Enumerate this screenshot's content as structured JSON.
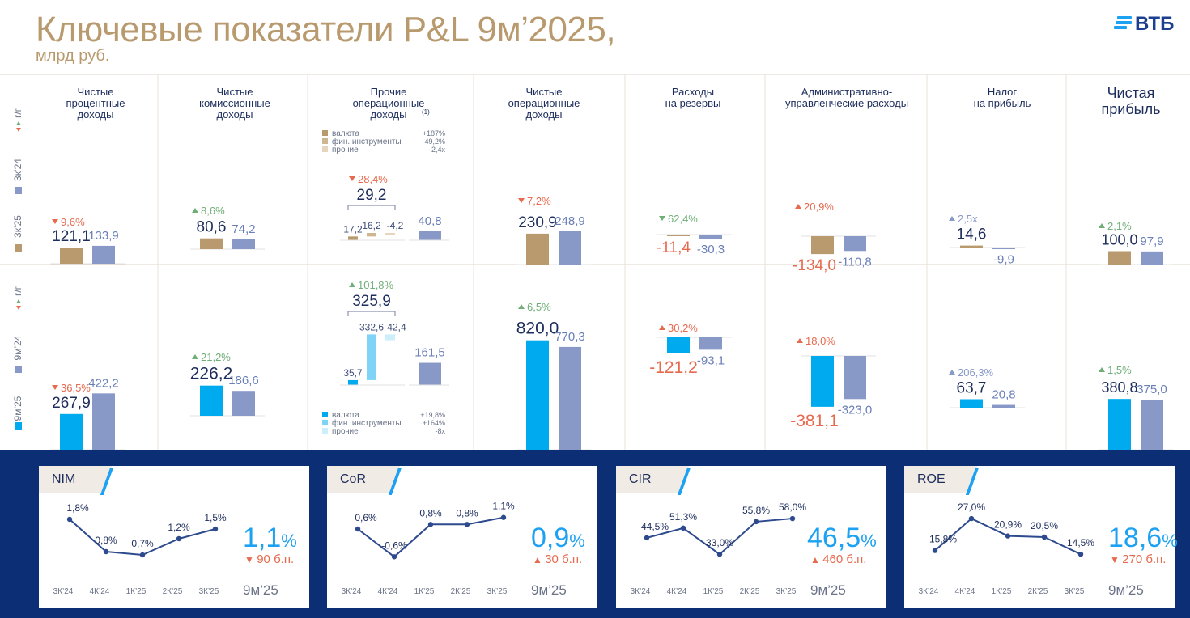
{
  "header": {
    "title": "Ключевые показатели P&L 9м’2025,",
    "subtitle": "млрд руб.",
    "logo_text": "ВТБ"
  },
  "row_labels": {
    "yoy": "г/г",
    "q24": "3к’24",
    "q25": "3к’25",
    "m24": "9м’24",
    "m25": "9м’25"
  },
  "colors": {
    "gold": "#b89a6e",
    "blue": "#00aaee",
    "gray": "#8899c8",
    "red": "#e66a4e",
    "green": "#6fae76",
    "navy": "#1d2d5c",
    "lightblue": "#7fd3f7",
    "paleblue": "#cdeefb",
    "tan": "#cfb692",
    "beige": "#e6d5bc"
  },
  "chart_data": [
    {
      "type": "bar",
      "title": "3к’25 vs 3к’24",
      "categories": [
        "Чистые процентные доходы",
        "Чистые комиссионные доходы",
        "Прочие операционные доходы (1)",
        "Чистые операционные доходы",
        "Расходы на резервы",
        "Административно-управленческие расходы",
        "Налог на прибыль",
        "Чистая прибыль"
      ],
      "series": [
        {
          "name": "3к’25",
          "values": [
            121.1,
            80.6,
            29.2,
            230.9,
            -11.4,
            -134.0,
            14.6,
            100.0
          ]
        },
        {
          "name": "3к’24",
          "values": [
            133.9,
            74.2,
            40.8,
            248.9,
            -30.3,
            -110.8,
            -9.9,
            97.9
          ]
        }
      ],
      "value_labels_25": [
        "121,1",
        "80,6",
        "29,2",
        "230,9",
        "-11,4",
        "-134,0",
        "14,6",
        "100,0"
      ],
      "value_labels_24": [
        "133,9",
        "74,2",
        "40,8",
        "248,9",
        "-30,3",
        "-110,8",
        "-9,9",
        "97,9"
      ],
      "changes": [
        "9,6%",
        "8,6%",
        "28,4%",
        "7,2%",
        "62,4%",
        "20,9%",
        "2,5x",
        "2,1%"
      ],
      "change_dir": [
        "down",
        "up",
        "down",
        "down",
        "down",
        "up",
        "up",
        "up"
      ],
      "change_color": [
        "red",
        "green",
        "red",
        "red",
        "green",
        "red",
        "gray",
        "green"
      ],
      "breakdown": {
        "labels": [
          "валюта",
          "фин. инструменты",
          "прочие"
        ],
        "values": [
          17.2,
          16.2,
          -4.2
        ],
        "value_labels": [
          "17,2",
          "16,2",
          "-4,2"
        ],
        "changes": [
          "+187%",
          "-49,2%",
          "-2,4x"
        ]
      }
    },
    {
      "type": "bar",
      "title": "9м’25 vs 9м’24",
      "categories": [
        "Чистые процентные доходы",
        "Чистые комиссионные доходы",
        "Прочие операционные доходы (1)",
        "Чистые операционные доходы",
        "Расходы на резервы",
        "Административно-управленческие расходы",
        "Налог на прибыль",
        "Чистая прибыль"
      ],
      "series": [
        {
          "name": "9м’25",
          "values": [
            267.9,
            226.2,
            325.9,
            820.0,
            -121.2,
            -381.1,
            63.7,
            380.8
          ]
        },
        {
          "name": "9м’24",
          "values": [
            422.2,
            186.6,
            161.5,
            770.3,
            -93.1,
            -323.0,
            20.8,
            375.0
          ]
        }
      ],
      "value_labels_25": [
        "267,9",
        "226,2",
        "325,9",
        "820,0",
        "-121,2",
        "-381,1",
        "63,7",
        "380,8"
      ],
      "value_labels_24": [
        "422,2",
        "186,6",
        "161,5",
        "770,3",
        "-93,1",
        "-323,0",
        "20,8",
        "375,0"
      ],
      "changes": [
        "36,5%",
        "21,2%",
        "101,8%",
        "6,5%",
        "30,2%",
        "18,0%",
        "206,3%",
        "1,5%"
      ],
      "change_dir": [
        "down",
        "up",
        "up",
        "up",
        "up",
        "up",
        "up",
        "up"
      ],
      "change_color": [
        "red",
        "green",
        "green",
        "green",
        "red",
        "red",
        "gray",
        "green"
      ],
      "breakdown": {
        "labels": [
          "валюта",
          "фин. инструменты",
          "прочие"
        ],
        "values": [
          35.7,
          332.6,
          -42.4
        ],
        "value_labels": [
          "35,7",
          "332,6",
          "-42,4"
        ],
        "changes": [
          "+19,8%",
          "+164%",
          "-8x"
        ]
      }
    },
    {
      "type": "line",
      "title": "NIM",
      "x": [
        "3К’24",
        "4К’24",
        "1К’25",
        "2К’25",
        "3К’25"
      ],
      "values": [
        1.8,
        0.8,
        0.7,
        1.2,
        1.5
      ],
      "value_labels": [
        "1,8%",
        "0,8%",
        "0,7%",
        "1,2%",
        "1,5%"
      ],
      "summary": {
        "value": "1,1",
        "unit": "%",
        "change": "90 б.п.",
        "dir": "down",
        "period": "9м’25"
      }
    },
    {
      "type": "line",
      "title": "CoR",
      "x": [
        "3К’24",
        "4К’24",
        "1К’25",
        "2К’25",
        "3К’25"
      ],
      "values": [
        0.6,
        -0.6,
        0.8,
        0.8,
        1.1
      ],
      "value_labels": [
        "0,6%",
        "-0,6%",
        "0,8%",
        "0,8%",
        "1,1%"
      ],
      "summary": {
        "value": "0,9",
        "unit": "%",
        "change": "30 б.п.",
        "dir": "up",
        "period": "9м’25"
      }
    },
    {
      "type": "line",
      "title": "CIR",
      "x": [
        "3К’24",
        "4К’24",
        "1К’25",
        "2К’25",
        "3К’25"
      ],
      "values": [
        44.5,
        51.3,
        33.0,
        55.8,
        58.0
      ],
      "value_labels": [
        "44,5%",
        "51,3%",
        "33,0%",
        "55,8%",
        "58,0%"
      ],
      "summary": {
        "value": "46,5",
        "unit": "%",
        "change": "460 б.п.",
        "dir": "up",
        "period": "9м’25"
      }
    },
    {
      "type": "line",
      "title": "ROE",
      "x": [
        "3К’24",
        "4К’24",
        "1К’25",
        "2К’25",
        "3К’25"
      ],
      "values": [
        15.8,
        27.0,
        20.9,
        20.5,
        14.5
      ],
      "value_labels": [
        "15,8%",
        "27,0%",
        "20,9%",
        "20,5%",
        "14,5%"
      ],
      "summary": {
        "value": "18,6",
        "unit": "%",
        "change": "270 б.п.",
        "dir": "down",
        "period": "9м’25"
      }
    }
  ]
}
